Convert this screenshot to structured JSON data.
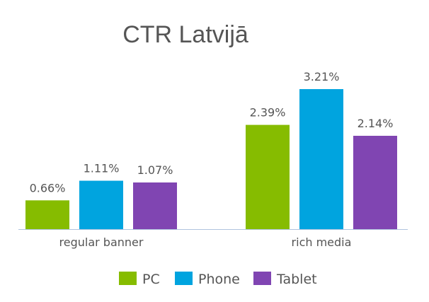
{
  "chart_data": {
    "type": "bar",
    "title": "CTR Latvijā",
    "categories": [
      "regular banner",
      "rich media"
    ],
    "series": [
      {
        "name": "PC",
        "color": "#86bc00",
        "values": [
          0.66,
          2.39
        ],
        "labels": [
          "0.66%",
          "2.39%"
        ]
      },
      {
        "name": "Phone",
        "color": "#00a4df",
        "values": [
          1.11,
          3.21
        ],
        "labels": [
          "1.11%",
          "3.21%"
        ]
      },
      {
        "name": "Tablet",
        "color": "#8045b2",
        "values": [
          1.07,
          2.14
        ],
        "labels": [
          "1.07%",
          "2.14%"
        ]
      }
    ],
    "ylim": [
      0,
      3.5
    ],
    "grid": false,
    "legend": "bottom",
    "axis_color": "#b0c4de"
  }
}
